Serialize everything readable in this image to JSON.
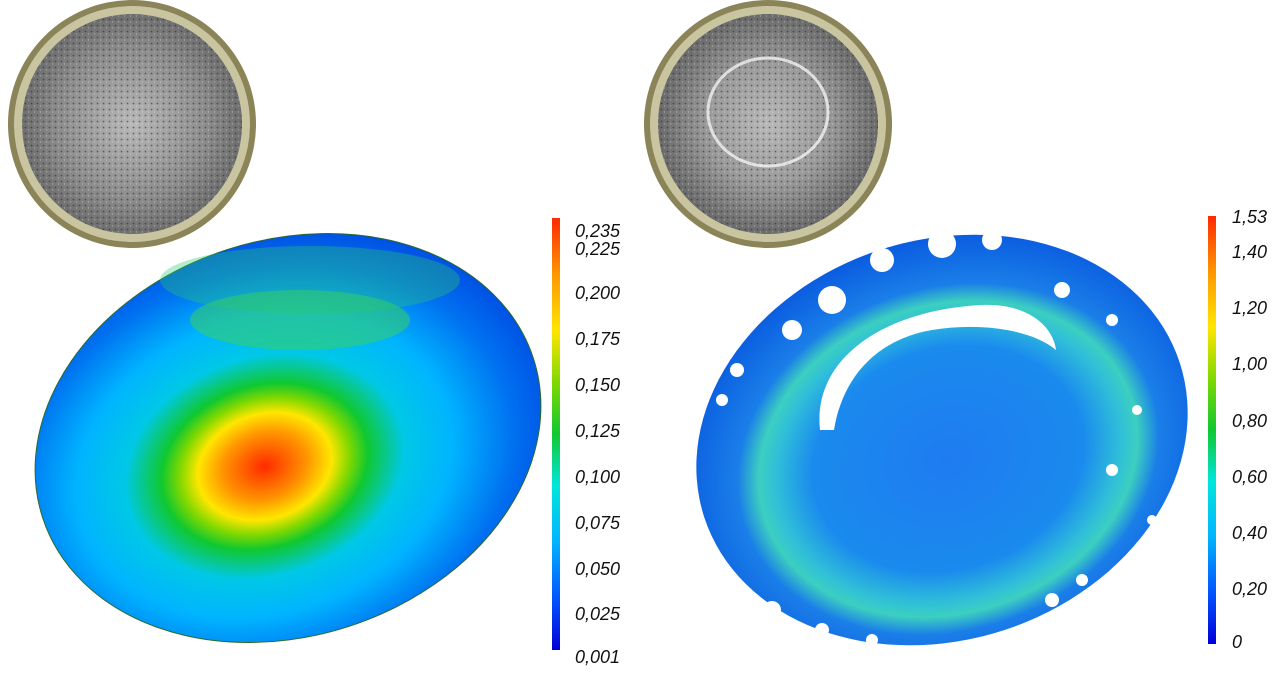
{
  "panels": [
    {
      "id": "left",
      "photo": "specimen-photo-speckle-pattern",
      "map": "strain-field-map",
      "colorbar": {
        "ticks": [
          "0,235",
          "0,225",
          "0,200",
          "0,175",
          "0,150",
          "0,125",
          "0,100",
          "0,075",
          "0,050",
          "0,025",
          "0,001"
        ]
      }
    },
    {
      "id": "right",
      "photo": "specimen-photo-speckle-pattern-deformed",
      "map": "strain-field-map-with-gaps",
      "colorbar": {
        "ticks": [
          "1,53",
          "1,40",
          "1,20",
          "1,00",
          "0,80",
          "0,60",
          "0,40",
          "0,20",
          "0"
        ]
      }
    }
  ],
  "colormap": [
    "#0000d8",
    "#0055ff",
    "#00b4ff",
    "#00e6dc",
    "#10c830",
    "#80d800",
    "#ffe600",
    "#ff9600",
    "#ff2a00"
  ]
}
